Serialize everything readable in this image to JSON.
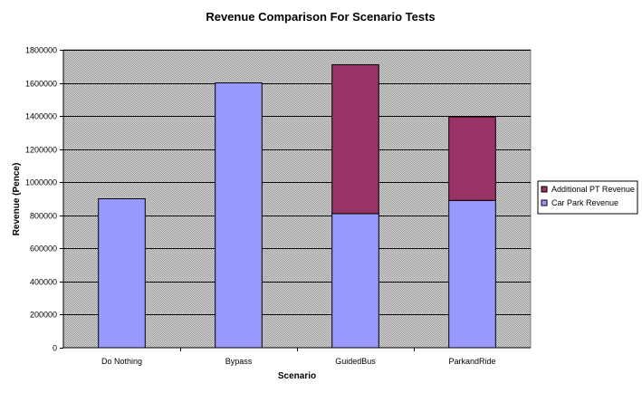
{
  "chart_data": {
    "type": "bar",
    "stacked": true,
    "title": "Revenue Comparison For Scenario Tests",
    "xlabel": "Scenario",
    "ylabel": "Revenue (Pence)",
    "categories": [
      "Do Nothing",
      "Bypass",
      "GuidedBus",
      "ParkandRide"
    ],
    "series": [
      {
        "name": "Car Park Revenue",
        "values": [
          900000,
          1600000,
          810000,
          890000
        ],
        "color": "#9999ff"
      },
      {
        "name": "Additional PT Revenue",
        "values": [
          0,
          0,
          900000,
          505000
        ],
        "color": "#993366"
      }
    ],
    "ylim": [
      0,
      1800000
    ],
    "yticks": [
      0,
      200000,
      400000,
      600000,
      800000,
      1000000,
      1200000,
      1400000,
      1600000,
      1800000
    ],
    "grid": true,
    "plot_background": "#c0c0c0",
    "legend_position": "right"
  }
}
